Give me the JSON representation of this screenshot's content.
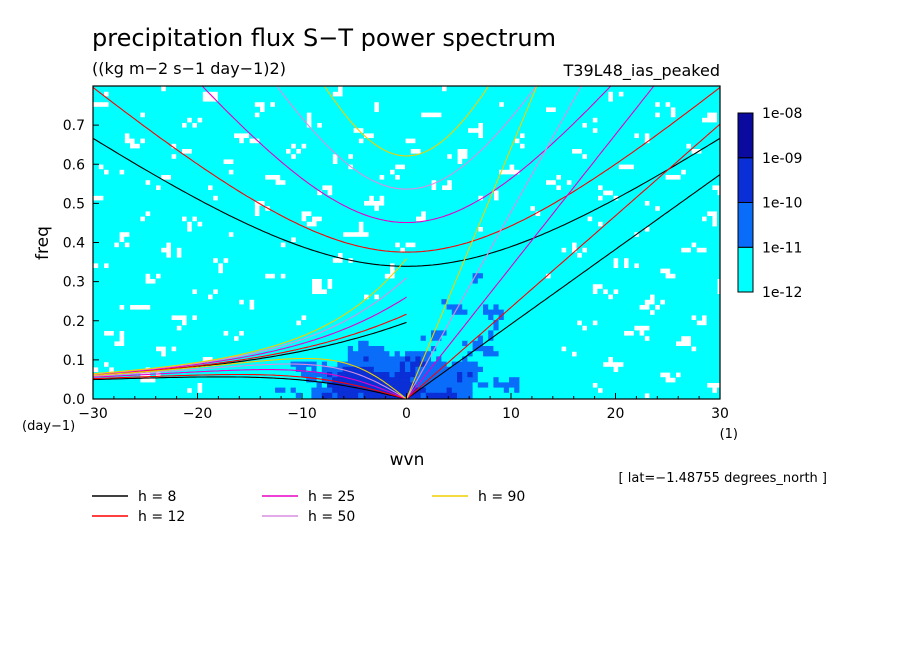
{
  "chart_data": {
    "type": "heatmap",
    "title": "precipitation flux S−T power spectrum",
    "subtitle": "((kg m−2 s−1 day−1)2)",
    "run_label": "T39L48_ias_peaked",
    "xlabel": "wvn",
    "ylabel": "freq",
    "x_unit": "(1)",
    "y_unit": "(day−1)",
    "xlim": [
      -30,
      30
    ],
    "ylim": [
      0,
      0.8
    ],
    "x_ticks": [
      {
        "value": -30,
        "label": "−30"
      },
      {
        "value": -20,
        "label": "−20"
      },
      {
        "value": -10,
        "label": "−10"
      },
      {
        "value": 0,
        "label": "0"
      },
      {
        "value": 10,
        "label": "10"
      },
      {
        "value": 20,
        "label": "20"
      },
      {
        "value": 30,
        "label": "30"
      }
    ],
    "y_ticks": [
      {
        "value": 0.0,
        "label": "0.0"
      },
      {
        "value": 0.1,
        "label": "0.1"
      },
      {
        "value": 0.2,
        "label": "0.2"
      },
      {
        "value": 0.3,
        "label": "0.3"
      },
      {
        "value": 0.4,
        "label": "0.4"
      },
      {
        "value": 0.5,
        "label": "0.5"
      },
      {
        "value": 0.6,
        "label": "0.6"
      },
      {
        "value": 0.7,
        "label": "0.7"
      }
    ],
    "color_levels": [
      {
        "label": "1e-12",
        "color": "#00ffff"
      },
      {
        "label": "1e-11",
        "color": "#0a6dfa"
      },
      {
        "label": "1e-10",
        "color": "#0a2fd6"
      },
      {
        "label": "1e-09",
        "color": "#0a0a9e"
      },
      {
        "label": "1e-08",
        "color": "#4b1ab4"
      }
    ],
    "dispersion_curves": [
      {
        "h": 8,
        "label": "h =  8",
        "color": "#000000"
      },
      {
        "h": 12,
        "label": "h = 12",
        "color": "#ff0000"
      },
      {
        "h": 25,
        "label": "h = 25",
        "color": "#e600c8"
      },
      {
        "h": 50,
        "label": "h = 50",
        "color": "#d98ee0"
      },
      {
        "h": 90,
        "label": "h = 90",
        "color": "#f0d000"
      }
    ],
    "annotation": "[ lat=−1.48755 degrees_north ]",
    "legend_position": "bottom-left"
  }
}
